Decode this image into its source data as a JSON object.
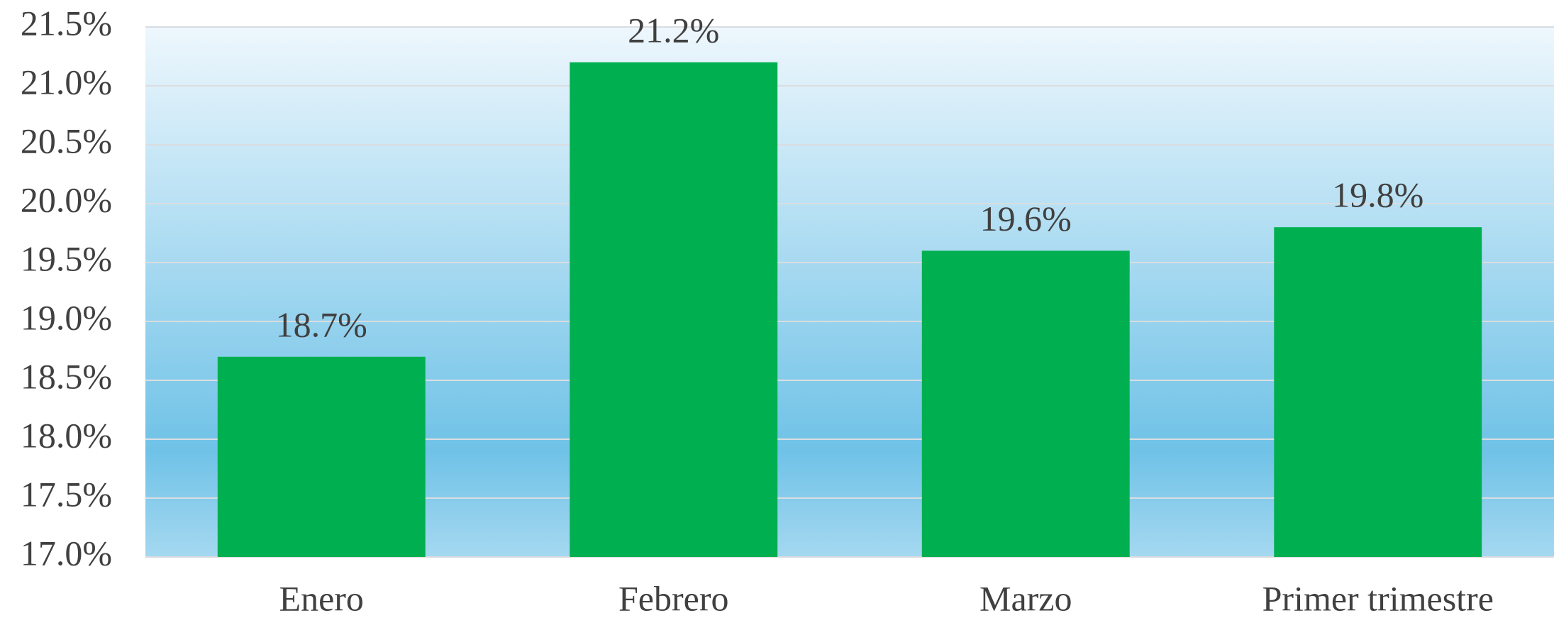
{
  "chart_data": {
    "type": "bar",
    "categories": [
      "Enero",
      "Febrero",
      "Marzo",
      "Primer trimestre"
    ],
    "values": [
      18.7,
      21.2,
      19.6,
      19.8
    ],
    "value_labels": [
      "18.7%",
      "21.2%",
      "19.6%",
      "19.8%"
    ],
    "color": "#00b050",
    "ylim": [
      17.0,
      21.5
    ],
    "yticks": [
      {
        "value": 17.0,
        "label": "17.0%"
      },
      {
        "value": 17.5,
        "label": "17.5%"
      },
      {
        "value": 18.0,
        "label": "18.0%"
      },
      {
        "value": 18.5,
        "label": "18.5%"
      },
      {
        "value": 19.0,
        "label": "19.0%"
      },
      {
        "value": 19.5,
        "label": "19.5%"
      },
      {
        "value": 20.0,
        "label": "20.0%"
      },
      {
        "value": 20.5,
        "label": "20.5%"
      },
      {
        "value": 21.0,
        "label": "21.0%"
      },
      {
        "value": 21.5,
        "label": "21.5%"
      }
    ],
    "grid": true
  }
}
